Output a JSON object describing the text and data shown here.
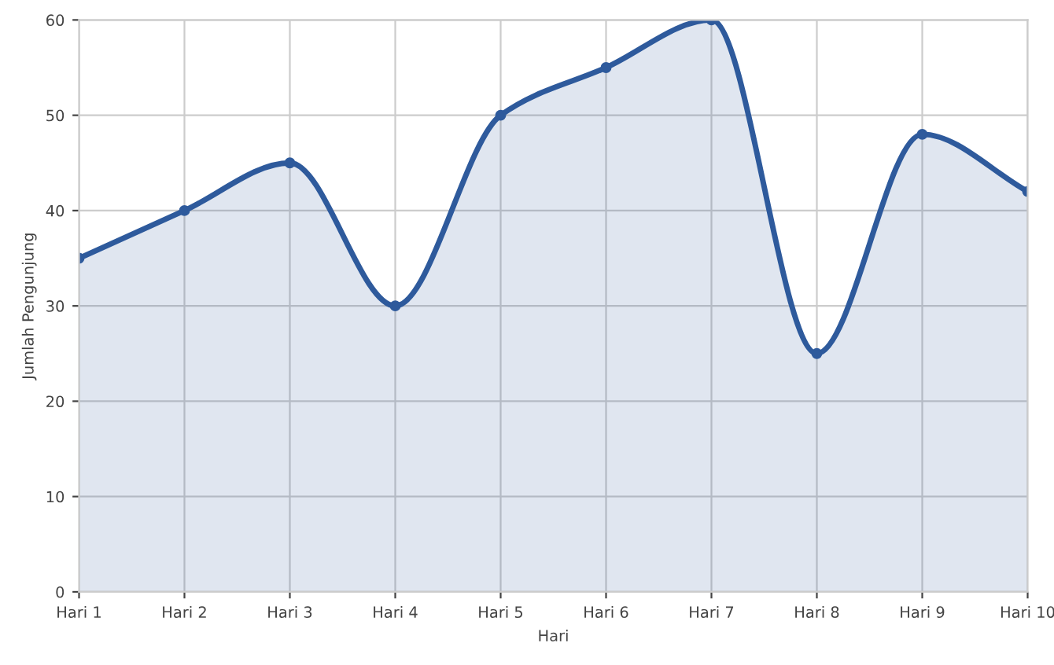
{
  "chart_data": {
    "type": "area",
    "xlabel": "Hari",
    "ylabel": "Jumlah Pengunjung",
    "categories": [
      "Hari 1",
      "Hari 2",
      "Hari 3",
      "Hari 4",
      "Hari 5",
      "Hari 6",
      "Hari 7",
      "Hari 8",
      "Hari 9",
      "Hari 10"
    ],
    "series": [
      {
        "color": "#2e5a9c",
        "values": [
          35,
          40,
          45,
          30,
          50,
          55,
          60,
          25,
          48,
          42
        ]
      }
    ],
    "ylim": [
      0,
      60
    ],
    "yticks": [
      0,
      10,
      20,
      30,
      40,
      50,
      60
    ],
    "grid": true,
    "marker": "circle",
    "line_style": "solid",
    "legend": false
  }
}
